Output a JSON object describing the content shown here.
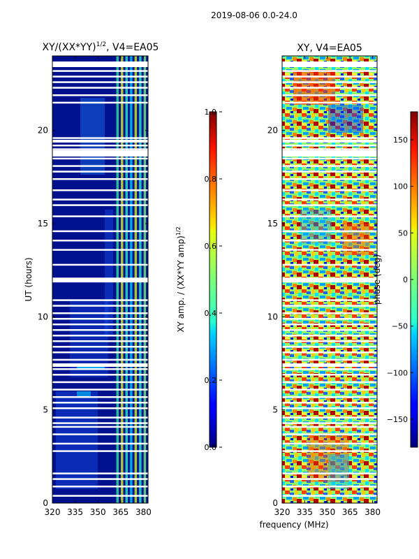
{
  "suptitle": "2019-08-06 0.0-24.0",
  "xlabel_shared": "frequency (MHz)",
  "chart_data": [
    {
      "type": "heatmap",
      "title_main": "XY/(XX*YY)",
      "title_sup": "1/2",
      "title_rest": ", V4=EA05",
      "xlabel": "",
      "ylabel": "UT (hours)",
      "xlim": [
        320,
        383
      ],
      "ylim": [
        0,
        24
      ],
      "x_ticks": [
        320,
        335,
        350,
        365,
        380
      ],
      "y_ticks": [
        0,
        5,
        10,
        15,
        20
      ],
      "colormap": "jet",
      "colorbar": {
        "label_main": "XY amp. / (XX*YY amp)",
        "label_sup": "1/2",
        "min": 0.0,
        "max": 1.0,
        "ticks": [
          "0.0",
          "0.2",
          "0.4",
          "0.6",
          "0.8",
          "1.0"
        ]
      }
    },
    {
      "type": "heatmap",
      "title": "XY, V4=EA05",
      "xlabel": "frequency (MHz)",
      "ylabel": "",
      "xlim": [
        320,
        383
      ],
      "ylim": [
        0,
        24
      ],
      "x_ticks": [
        320,
        335,
        350,
        365,
        380
      ],
      "y_ticks": [
        0,
        5,
        10,
        15,
        20
      ],
      "colormap": "jet",
      "colorbar": {
        "label": "phase (deg)",
        "min": -180,
        "max": 180,
        "ticks": [
          "−150",
          "−100",
          "−50",
          "0",
          "50",
          "100",
          "150"
        ]
      }
    }
  ],
  "flagged_hours": [
    0.4,
    0.9,
    1.3,
    1.6,
    2.8,
    3.2,
    3.7,
    4.1,
    4.3,
    4.6,
    5.1,
    5.4,
    5.7,
    6.1,
    6.5,
    6.9,
    7.2,
    7.4,
    7.7,
    8.1,
    8.4,
    8.7,
    9.0,
    9.3,
    9.6,
    9.9,
    10.2,
    10.6,
    10.9,
    11.9,
    12.0,
    12.8,
    13.6,
    14.1,
    14.6,
    15.4,
    16.0,
    16.3,
    16.8,
    17.4,
    17.8,
    18.1,
    18.5,
    18.9,
    19.0,
    19.2,
    19.6,
    21.5,
    21.9,
    22.3,
    22.6,
    22.9,
    23.2,
    23.5
  ]
}
